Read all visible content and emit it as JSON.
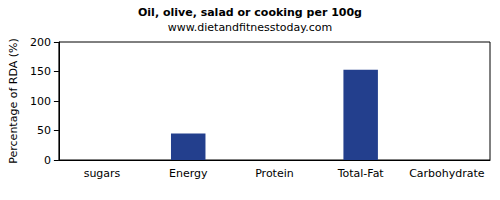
{
  "chart_data": {
    "type": "bar",
    "title": "Oil, olive, salad or cooking per 100g",
    "subtitle": "www.dietandfitnesstoday.com",
    "y_label": "Percentage of RDA (%)",
    "categories": [
      "sugars",
      "Energy",
      "Protein",
      "Total-Fat",
      "Carbohydrate"
    ],
    "values": [
      0,
      45,
      0,
      153,
      0
    ],
    "color": "#233f8d",
    "ylim": [
      0,
      200
    ],
    "yticks": [
      0,
      50,
      100,
      150,
      200
    ],
    "grid": false
  }
}
